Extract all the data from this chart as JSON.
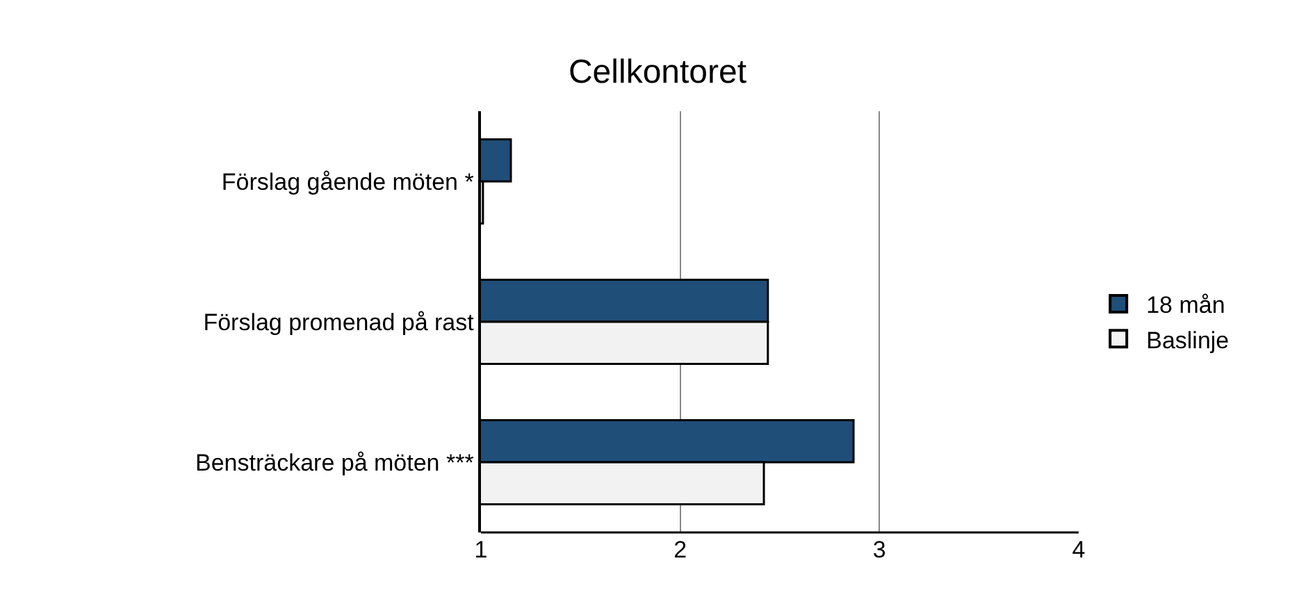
{
  "chart_data": {
    "type": "bar",
    "orientation": "horizontal",
    "title": "Cellkontoret",
    "categories": [
      "Förslag gående möten *",
      "Förslag promenad på rast",
      "Bensträckare på möten ***"
    ],
    "series": [
      {
        "name": "18 mån",
        "color": "#1f4e79",
        "values": [
          1.15,
          2.44,
          2.87
        ]
      },
      {
        "name": "Baslinje",
        "color": "#f2f2f2",
        "values": [
          1.01,
          2.44,
          2.42
        ]
      }
    ],
    "xlim": [
      1,
      4
    ],
    "xticks": [
      1,
      2,
      3,
      4
    ],
    "grid": "x",
    "legend": "right"
  }
}
